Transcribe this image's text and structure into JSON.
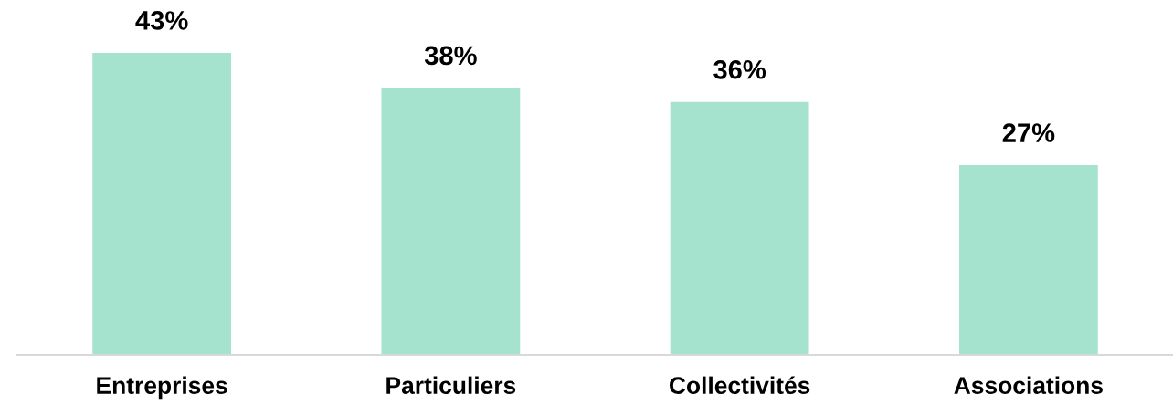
{
  "chart_data": {
    "type": "bar",
    "categories": [
      "Entreprises",
      "Particuliers",
      "Collectivités",
      "Associations"
    ],
    "values": [
      43,
      38,
      36,
      27
    ],
    "value_labels": [
      "43%",
      "38%",
      "36%",
      "27%"
    ],
    "color": "#a6e3cf",
    "grid": false,
    "legend": false
  }
}
